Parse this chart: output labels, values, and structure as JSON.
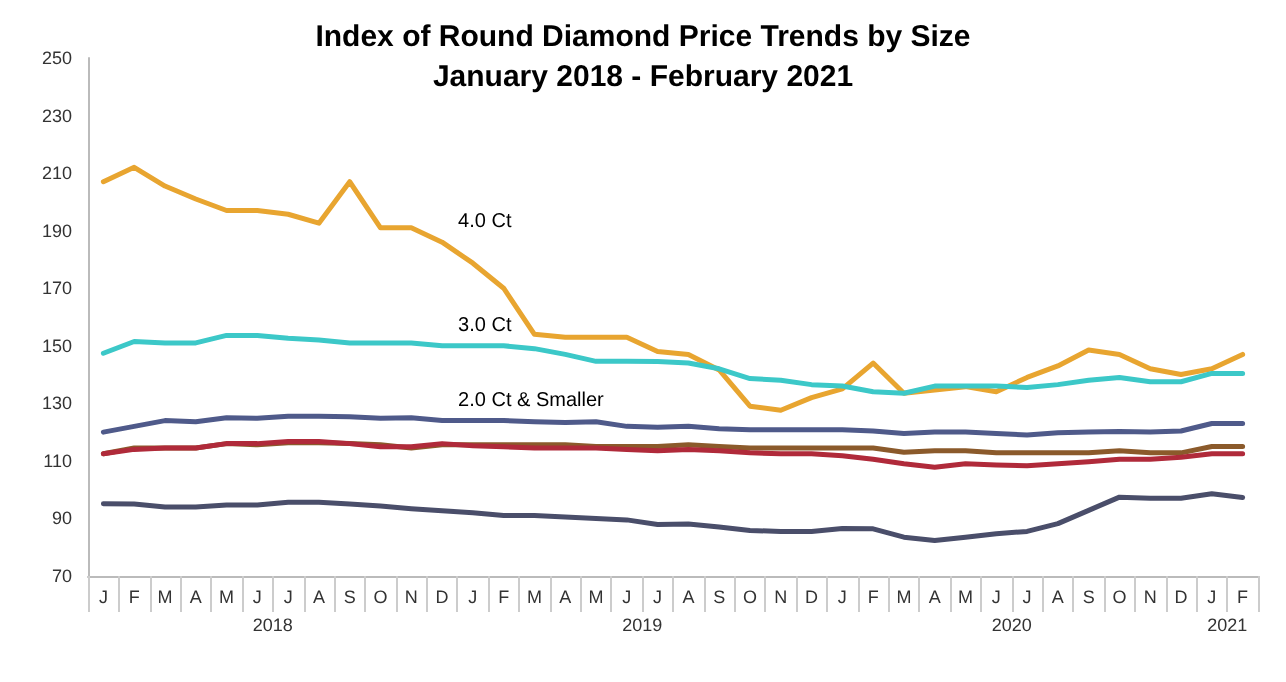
{
  "chart_data": {
    "type": "line",
    "title": "Index of Round Diamond Price Trends by Size",
    "subtitle": "January 2018 - February 2021",
    "categories": [
      "J",
      "F",
      "M",
      "A",
      "M",
      "J",
      "J",
      "A",
      "S",
      "O",
      "N",
      "D",
      "J",
      "F",
      "M",
      "A",
      "M",
      "J",
      "J",
      "A",
      "S",
      "O",
      "N",
      "D",
      "J",
      "F",
      "M",
      "A",
      "M",
      "J",
      "J",
      "A",
      "S",
      "O",
      "N",
      "D",
      "J",
      "F"
    ],
    "annotations": [
      "2018",
      "2019",
      "2020",
      "2021"
    ],
    "ylim": [
      70,
      250
    ],
    "yticks": [
      70,
      90,
      110,
      130,
      150,
      170,
      190,
      210,
      230,
      250
    ],
    "grid": false,
    "legend": false,
    "marker": "none",
    "line_style": "solid",
    "series": [
      {
        "name": "4.0 Ct",
        "color": "#e8a530",
        "values": [
          207,
          212,
          205.5,
          201,
          197,
          197,
          195.7,
          192.6,
          207,
          191,
          191,
          186,
          178.7,
          170,
          154,
          153,
          153,
          153,
          148,
          147,
          141.6,
          129,
          127.6,
          132,
          135,
          144,
          133.5,
          134.6,
          135.8,
          134,
          139,
          143,
          148.5,
          147,
          142,
          140,
          142,
          147
        ]
      },
      {
        "name": "3.0 Ct",
        "color": "#3cc8c8",
        "values": [
          147.4,
          151.5,
          151,
          151,
          153.6,
          153.6,
          152.6,
          152,
          151,
          151,
          151,
          150,
          150,
          150,
          149,
          147,
          144.6,
          144.6,
          144.5,
          144,
          142,
          138.6,
          138,
          136.5,
          136,
          134,
          133.5,
          136,
          136,
          136,
          135.5,
          136.5,
          138,
          139,
          137.5,
          137.5,
          140.4,
          140.4
        ]
      },
      {
        "name": "2.0 Ct & Smaller",
        "color": "#4f5a8a",
        "values": [
          120,
          122,
          124,
          123.6,
          125,
          124.8,
          125.5,
          125.5,
          125.3,
          124.8,
          125,
          124,
          124,
          124,
          123.6,
          123.3,
          123.6,
          122,
          121.7,
          122,
          121.2,
          120.8,
          120.8,
          120.8,
          120.8,
          120.4,
          119.5,
          120,
          120,
          119.5,
          119,
          119.8,
          120,
          120.2,
          120,
          120.4,
          123,
          123
        ]
      },
      {
        "color": "#8b5a2b",
        "values": [
          112.5,
          114.5,
          114.5,
          114.5,
          116,
          115.6,
          116.3,
          116.3,
          116,
          115.6,
          114.5,
          115.6,
          115.6,
          115.6,
          115.6,
          115.6,
          115,
          115,
          115,
          115.6,
          115,
          114.5,
          114.5,
          114.5,
          114.5,
          114.5,
          113,
          113.5,
          113.5,
          112.8,
          112.8,
          112.8,
          112.8,
          113.5,
          112.8,
          112.8,
          115,
          115
        ]
      },
      {
        "color": "#b02a3a",
        "values": [
          112.5,
          114,
          114.5,
          114.5,
          116,
          116,
          116.7,
          116.7,
          116,
          114.9,
          114.9,
          116,
          115.3,
          114.9,
          114.5,
          114.5,
          114.5,
          114,
          113.5,
          114,
          113.5,
          112.8,
          112.5,
          112.5,
          111.8,
          110.6,
          109,
          107.8,
          109,
          108.6,
          108.3,
          109,
          109.7,
          110.6,
          110.6,
          111.3,
          112.5,
          112.5
        ]
      },
      {
        "color": "#4a4e6a",
        "values": [
          95.1,
          95,
          94,
          94,
          94.7,
          94.7,
          95.6,
          95.6,
          95,
          94.3,
          93.4,
          92.7,
          92,
          91,
          91,
          90.5,
          90,
          89.5,
          87.9,
          88.1,
          87,
          85.8,
          85.5,
          85.5,
          86.5,
          86.4,
          83.5,
          82.3,
          83.5,
          84.7,
          85.5,
          88.2,
          92.8,
          97.4,
          97,
          97,
          98.6,
          97.3
        ]
      }
    ]
  }
}
